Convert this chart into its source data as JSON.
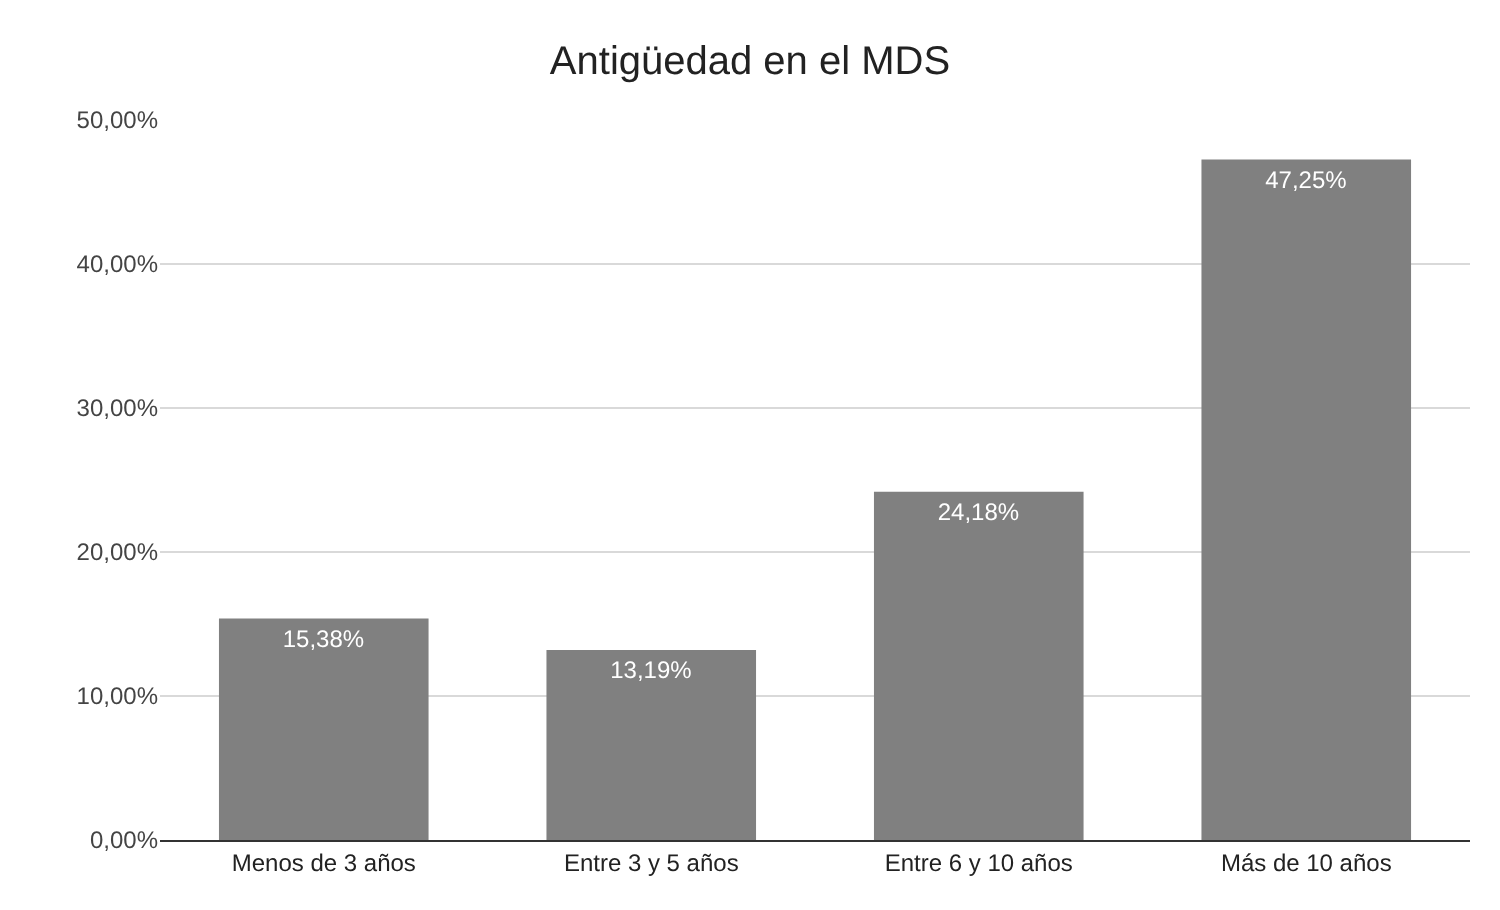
{
  "chart_data": {
    "type": "bar",
    "title": "Antigüedad en el MDS",
    "categories": [
      "Menos de 3 años",
      "Entre 3 y 5 años",
      "Entre 6 y 10 años",
      "Más de 10 años"
    ],
    "values": [
      15.38,
      13.19,
      24.18,
      47.25
    ],
    "color": "#808080",
    "value_labels": [
      "15,38%",
      "13,19%",
      "24,18%",
      "47,25%"
    ],
    "ylim": [
      0,
      50
    ],
    "yticks": [
      {
        "value": 0,
        "label": "0,00%"
      },
      {
        "value": 10,
        "label": "10,00%"
      },
      {
        "value": 20,
        "label": "20,00%"
      },
      {
        "value": 30,
        "label": "30,00%"
      },
      {
        "value": 40,
        "label": "40,00%"
      },
      {
        "value": 50,
        "label": "50,00%"
      }
    ],
    "grid": "y",
    "legend": false
  }
}
